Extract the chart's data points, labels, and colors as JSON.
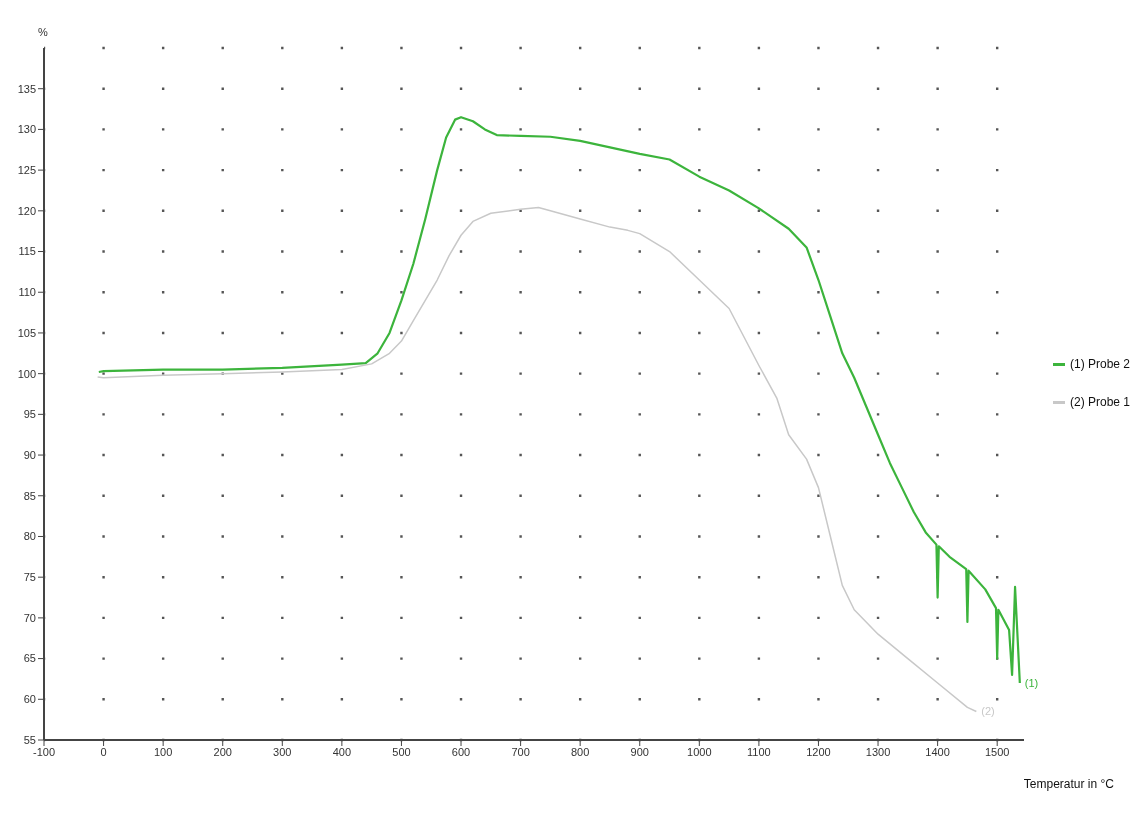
{
  "chart_data": {
    "type": "line",
    "xlabel": "Temperatur in °C",
    "ylabel": "%",
    "xlim": [
      -100,
      1545
    ],
    "xticks": [
      -100,
      0,
      100,
      200,
      300,
      400,
      500,
      600,
      700,
      800,
      900,
      1000,
      1100,
      1200,
      1300,
      1400,
      1500
    ],
    "ylim": [
      55,
      140
    ],
    "yticks": [
      55,
      60,
      65,
      70,
      75,
      80,
      85,
      90,
      95,
      100,
      105,
      110,
      115,
      120,
      125,
      130,
      135
    ],
    "grid": true,
    "legend": "right",
    "marker": "none",
    "line_style": "solid",
    "series": [
      {
        "name": "(1) Probe 2",
        "color": "#3cb43c",
        "x": [
          -8,
          0,
          100,
          200,
          300,
          400,
          440,
          460,
          480,
          500,
          520,
          540,
          560,
          575,
          590,
          600,
          620,
          640,
          660,
          700,
          750,
          800,
          850,
          900,
          950,
          1000,
          1050,
          1100,
          1150,
          1180,
          1200,
          1220,
          1240,
          1260,
          1280,
          1300,
          1320,
          1340,
          1360,
          1380,
          1398,
          1400,
          1402,
          1420,
          1448,
          1450,
          1452,
          1480,
          1498,
          1500,
          1502,
          1520,
          1525,
          1530,
          1538
        ],
        "values": [
          100.2,
          100.3,
          100.5,
          100.5,
          100.7,
          101.1,
          101.3,
          102.5,
          105,
          109,
          113.5,
          119,
          125,
          129,
          131.2,
          131.5,
          131,
          130,
          129.3,
          129.2,
          129.1,
          128.6,
          127.8,
          127,
          126.3,
          124.2,
          122.5,
          120.3,
          117.8,
          115.5,
          111.5,
          107,
          102.5,
          99.5,
          96,
          92.5,
          89,
          86,
          83,
          80.5,
          79,
          72.5,
          78.8,
          77.5,
          76,
          69.5,
          75.8,
          73.5,
          71.2,
          65,
          71,
          68.5,
          63,
          73.8,
          62
        ]
      },
      {
        "name": "(2) Probe 1",
        "color": "#c8c8c8",
        "x": [
          -10,
          0,
          100,
          200,
          300,
          400,
          450,
          480,
          500,
          520,
          540,
          560,
          580,
          600,
          620,
          650,
          700,
          730,
          750,
          800,
          850,
          880,
          900,
          950,
          1000,
          1050,
          1100,
          1130,
          1150,
          1180,
          1200,
          1220,
          1240,
          1260,
          1300,
          1350,
          1400,
          1450,
          1465
        ],
        "values": [
          99.6,
          99.5,
          99.8,
          100,
          100.2,
          100.5,
          101.2,
          102.5,
          104,
          106.5,
          109,
          111.5,
          114.5,
          117,
          118.7,
          119.7,
          120.2,
          120.4,
          120,
          119,
          118,
          117.6,
          117.2,
          115,
          111.5,
          108,
          101,
          97,
          92.5,
          89.5,
          86,
          80,
          74,
          71,
          68,
          65,
          62,
          59,
          58.5
        ]
      }
    ],
    "annotations": [
      {
        "text": "(1)",
        "x": 1538,
        "y": 62
      },
      {
        "text": "(2)",
        "x": 1465,
        "y": 58.5
      }
    ]
  }
}
